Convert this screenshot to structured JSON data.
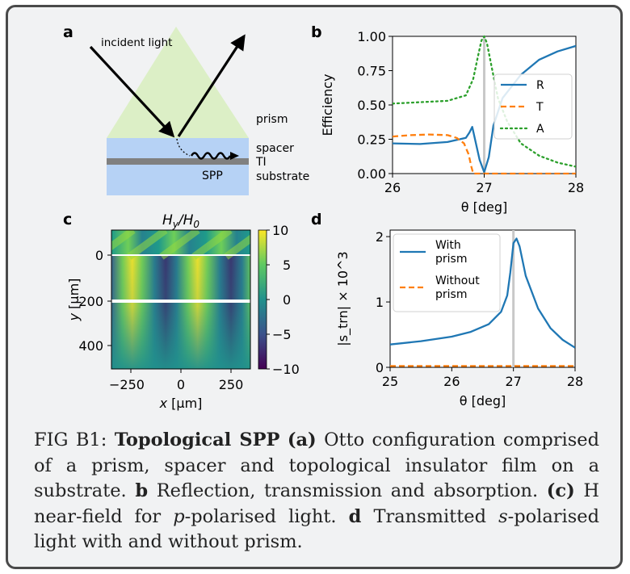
{
  "figure": {
    "panel_labels": {
      "a": "a",
      "b": "b",
      "c": "c",
      "d": "d"
    },
    "panel_a": {
      "incident_label": "incident light",
      "prism_label": "prism",
      "spacer_label": "spacer",
      "ti_label": "TI",
      "spp_label": "SPP",
      "substrate_label": "substrate"
    },
    "colorbar_ticks": [
      "10",
      "5",
      "0",
      "−5",
      "−10"
    ],
    "colors": {
      "R": "#1f77b4",
      "T": "#ff7f0e",
      "A": "#2ca02c",
      "prism": "#dcefc6",
      "layer": "#b6d2f5",
      "ti": "#808080"
    }
  },
  "chart_data": [
    {
      "panel": "b",
      "type": "line",
      "xlabel": "θ [deg]",
      "ylabel": "Efficiency",
      "xlim": [
        26,
        28
      ],
      "ylim": [
        0,
        1
      ],
      "xticks": [
        "26",
        "27",
        "28"
      ],
      "yticks": [
        "0.00",
        "0.25",
        "0.50",
        "0.75",
        "1.00"
      ],
      "vline_x": 27.0,
      "legend_position": "right",
      "series": [
        {
          "name": "R",
          "style": "solid",
          "color": "#1f77b4",
          "x": [
            26.0,
            26.3,
            26.6,
            26.8,
            26.84,
            26.87,
            26.9,
            26.95,
            27.0,
            27.05,
            27.1,
            27.2,
            27.4,
            27.6,
            27.8,
            28.0
          ],
          "y": [
            0.22,
            0.215,
            0.23,
            0.26,
            0.3,
            0.34,
            0.25,
            0.1,
            0.01,
            0.12,
            0.35,
            0.55,
            0.72,
            0.83,
            0.89,
            0.93
          ]
        },
        {
          "name": "T",
          "style": "dashed",
          "color": "#ff7f0e",
          "x": [
            26.0,
            26.2,
            26.4,
            26.6,
            26.7,
            26.78,
            26.83,
            26.86,
            26.88,
            27.0,
            27.5,
            28.0
          ],
          "y": [
            0.27,
            0.28,
            0.285,
            0.28,
            0.26,
            0.22,
            0.14,
            0.05,
            0.0,
            0.0,
            0.0,
            0.0
          ]
        },
        {
          "name": "A",
          "style": "dotted",
          "color": "#2ca02c",
          "x": [
            26.0,
            26.3,
            26.6,
            26.8,
            26.88,
            26.93,
            26.97,
            27.0,
            27.03,
            27.08,
            27.15,
            27.25,
            27.4,
            27.6,
            27.8,
            28.0
          ],
          "y": [
            0.51,
            0.52,
            0.53,
            0.57,
            0.69,
            0.85,
            0.97,
            1.0,
            0.95,
            0.78,
            0.55,
            0.38,
            0.22,
            0.13,
            0.08,
            0.05
          ]
        }
      ]
    },
    {
      "panel": "c",
      "type": "heatmap",
      "title": "H_y/H_0",
      "xlabel": "x [µm]",
      "ylabel": "y [µm]",
      "xticks": [
        "−250",
        "0",
        "250"
      ],
      "yticks": [
        "0",
        "200",
        "400"
      ],
      "clim": [
        -10,
        10
      ],
      "colormap": "viridis"
    },
    {
      "panel": "d",
      "type": "line",
      "xlabel": "θ [deg]",
      "ylabel": "|s_trn| × 10^3",
      "xlim": [
        25,
        28
      ],
      "ylim": [
        0,
        2.1
      ],
      "xticks": [
        "25",
        "26",
        "27",
        "28"
      ],
      "yticks": [
        "0",
        "1",
        "2"
      ],
      "vline_x": 27.0,
      "legend_position": "top-left",
      "series": [
        {
          "name": "With prism",
          "style": "solid",
          "color": "#1f77b4",
          "x": [
            25.0,
            25.5,
            26.0,
            26.3,
            26.6,
            26.8,
            26.9,
            26.95,
            27.0,
            27.05,
            27.1,
            27.2,
            27.4,
            27.6,
            27.8,
            28.0
          ],
          "y": [
            0.35,
            0.4,
            0.47,
            0.54,
            0.66,
            0.85,
            1.1,
            1.45,
            1.9,
            1.97,
            1.85,
            1.4,
            0.9,
            0.6,
            0.42,
            0.3
          ]
        },
        {
          "name": "Without prism",
          "style": "dashed",
          "color": "#ff7f0e",
          "x": [
            25.0,
            28.0
          ],
          "y": [
            0.02,
            0.02
          ]
        }
      ]
    }
  ],
  "caption": {
    "fig_label": "FIG B1:",
    "title": "Topological SPP",
    "a_label": "(a)",
    "a_text": "Otto configuration comprised of a prism, spacer and topological insulator film on a substrate.",
    "b_label": "b",
    "b_text": "Reflection, transmission and absorption.",
    "c_label": "(c)",
    "c_text_pre": "H near-field for",
    "c_italic": "p",
    "c_text_post": "-polarised light.",
    "d_label": "d",
    "d_text_pre": "Transmitted",
    "d_italic": "s",
    "d_text_post": "-polarised light with and without prism."
  }
}
